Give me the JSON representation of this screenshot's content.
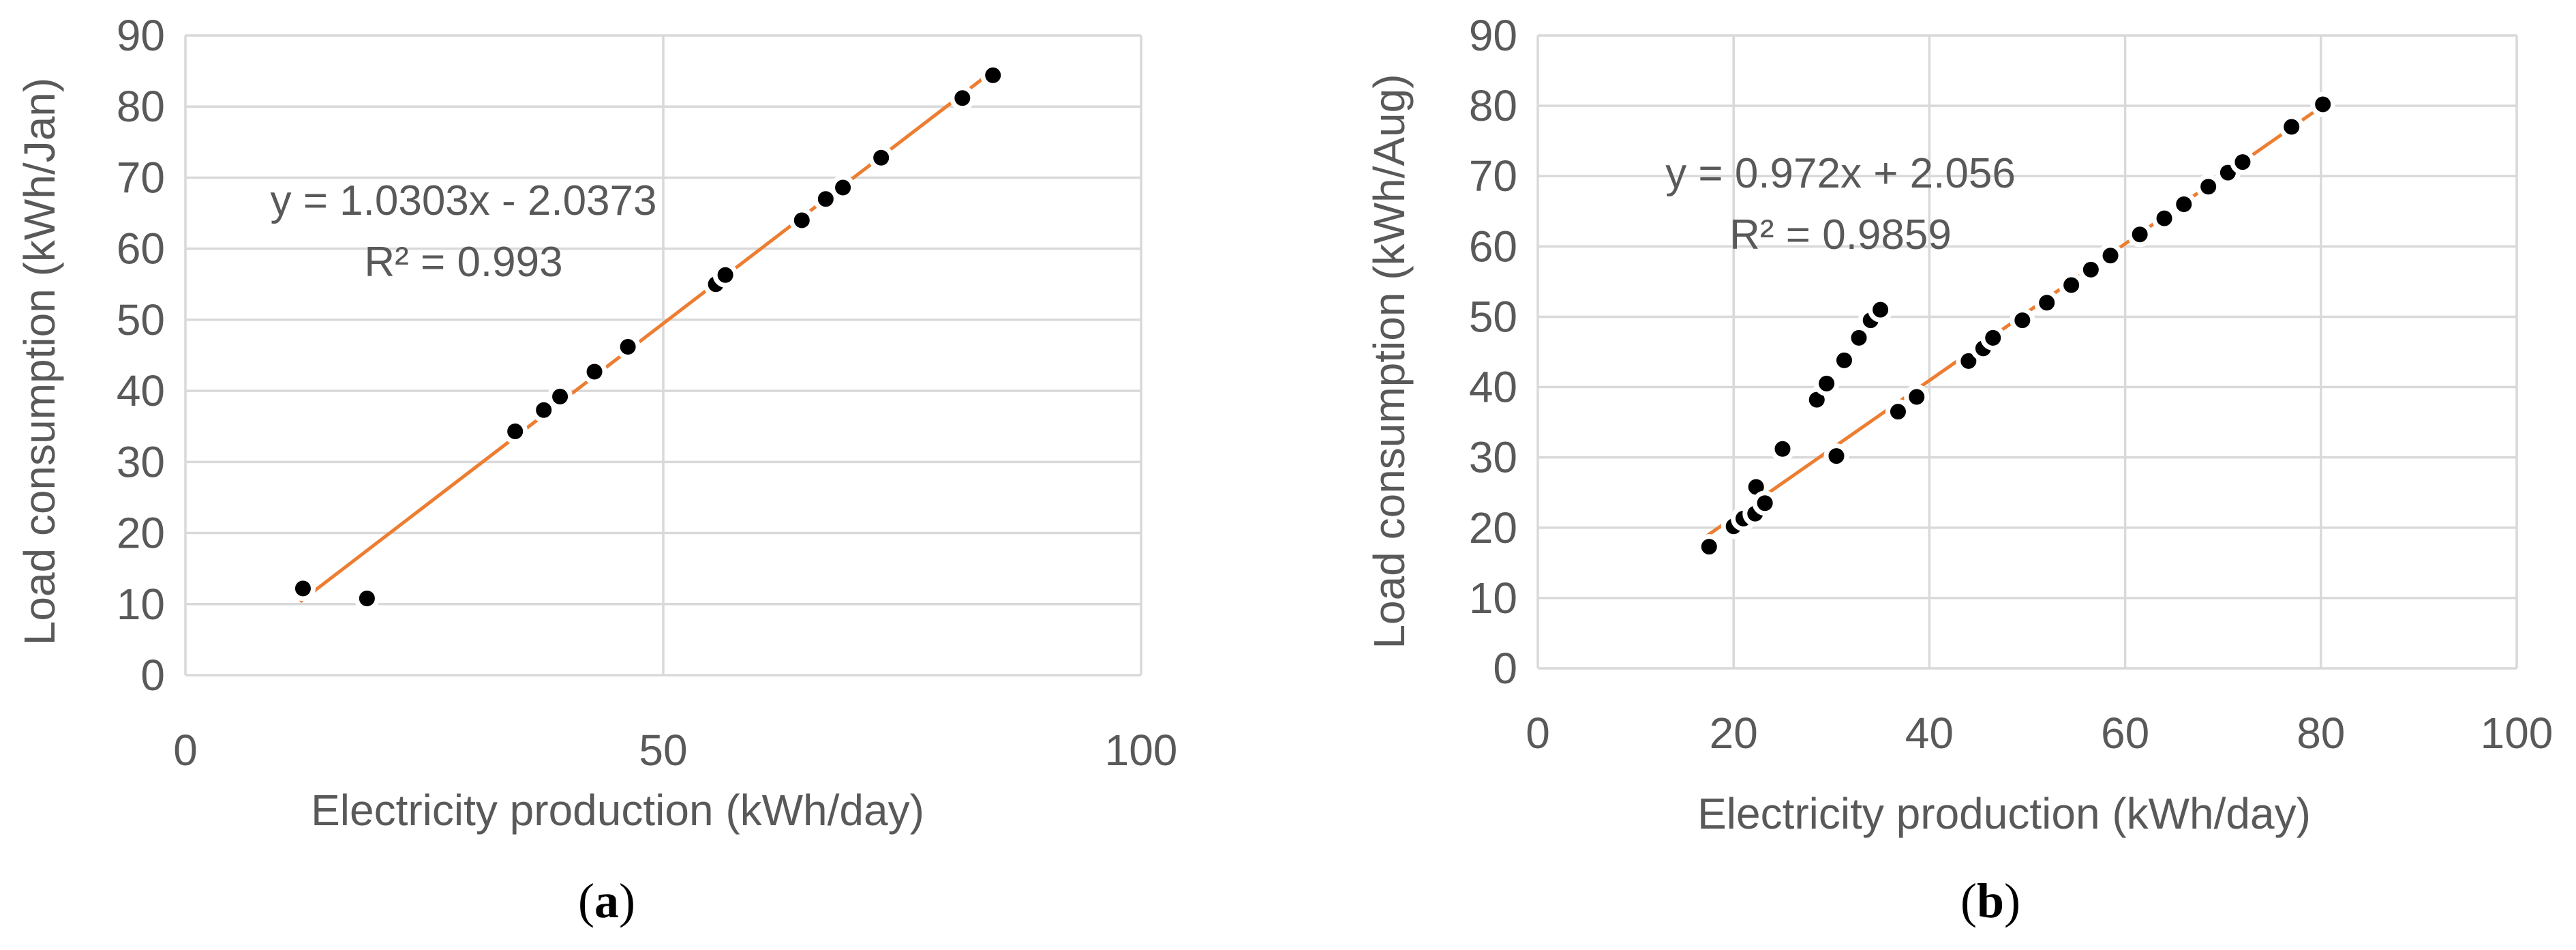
{
  "chart_data": [
    {
      "type": "scatter",
      "panel_label": "a",
      "title": "",
      "xlabel": "Electricity production (kWh/day)",
      "ylabel": "Load consumption (kWh/Jan)",
      "xlim": [
        0,
        100
      ],
      "ylim": [
        0,
        90
      ],
      "xticks": [
        0,
        50,
        100
      ],
      "yticks": [
        0,
        10,
        20,
        30,
        40,
        50,
        60,
        70,
        80,
        90
      ],
      "grid": true,
      "series": [
        {
          "name": "Load consumption",
          "x": [
            12.3,
            19.0,
            34.5,
            37.5,
            39.2,
            42.8,
            46.3,
            55.5,
            56.5,
            64.5,
            67.0,
            68.8,
            72.8,
            81.3,
            84.5
          ],
          "y": [
            12.2,
            10.8,
            34.3,
            37.3,
            39.2,
            42.7,
            46.2,
            55.0,
            56.3,
            64.0,
            67.0,
            68.6,
            72.8,
            81.2,
            84.4
          ]
        }
      ],
      "trendline": {
        "type": "linear",
        "slope": 1.0303,
        "intercept": -2.0373,
        "x_range": [
          12,
          84.5
        ]
      },
      "annotations": [
        "y = 1.0303x - 2.0373",
        "R² = 0.993"
      ]
    },
    {
      "type": "scatter",
      "panel_label": "b",
      "title": "",
      "xlabel": "Electricity production (kWh/day)",
      "ylabel": "Load consumption (kWh/Aug)",
      "xlim": [
        0,
        100
      ],
      "ylim": [
        0,
        90
      ],
      "xticks": [
        0,
        20,
        40,
        60,
        80,
        100
      ],
      "yticks": [
        0,
        10,
        20,
        30,
        40,
        50,
        60,
        70,
        80,
        90
      ],
      "grid": true,
      "series": [
        {
          "name": "Load consumption",
          "x": [
            17.5,
            20.0,
            21.0,
            22.2,
            22.3,
            23.2,
            25.0,
            28.5,
            29.5,
            30.5,
            31.3,
            32.8,
            34.0,
            35.0,
            36.8,
            38.7,
            44.0,
            45.5,
            46.5,
            49.5,
            52.0,
            54.5,
            56.5,
            58.5,
            61.5,
            64.0,
            66.0,
            68.5,
            70.5,
            72.0,
            77.0,
            80.2
          ],
          "y": [
            17.3,
            20.2,
            21.3,
            22.0,
            25.8,
            23.5,
            31.2,
            38.2,
            40.5,
            30.2,
            43.8,
            47.0,
            49.5,
            51.0,
            36.5,
            38.6,
            43.7,
            45.5,
            47.0,
            49.5,
            52.0,
            54.5,
            56.7,
            58.7,
            61.7,
            64.0,
            66.0,
            68.5,
            70.5,
            72.0,
            77.0,
            80.2
          ]
        }
      ],
      "trendline": {
        "type": "linear",
        "slope": 0.972,
        "intercept": 2.056,
        "x_range": [
          17,
          80.5
        ]
      },
      "annotations": [
        "y = 0.972x + 2.056",
        "R² = 0.9859"
      ]
    }
  ]
}
